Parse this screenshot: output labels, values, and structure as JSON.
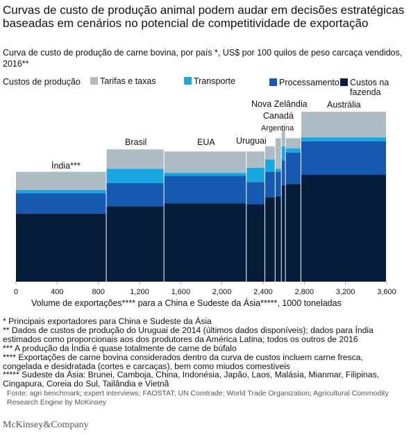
{
  "header": {
    "title": "Curvas de custo de produção animal podem audar em decisões estratégicas baseadas em cenários no potencial de competitividade de exportação",
    "subtitle": "Curva de custo de produção de carne bovina, por país *, US$ por 100 quilos de peso carcaça vendidos, 2016**"
  },
  "chart_data": {
    "type": "bar",
    "legend_title": "Custos de produção",
    "legend_position": "top",
    "series": [
      {
        "name": "Custos na fazenda",
        "color": "#051c3b"
      },
      {
        "name": "Processamento",
        "color": "#1659b0"
      },
      {
        "name": "Transporte",
        "color": "#19a7df"
      },
      {
        "name": "Tarifas e taxas",
        "color": "#aebcc6"
      }
    ],
    "countries": [
      {
        "name": "Índia***",
        "x0": 0,
        "x1": 880,
        "values": [
          67,
          20,
          3,
          18
        ]
      },
      {
        "name": "Brasil",
        "x0": 880,
        "x1": 1440,
        "values": [
          74,
          23,
          14,
          19
        ]
      },
      {
        "name": "EUA",
        "x0": 1440,
        "x1": 2240,
        "values": [
          77,
          27,
          3,
          21
        ]
      },
      {
        "name": "Uruguai",
        "x0": 2240,
        "x1": 2420,
        "values": [
          76,
          22,
          14,
          16
        ]
      },
      {
        "name": "",
        "x0": 2420,
        "x1": 2520,
        "values": [
          83,
          25,
          12,
          13
        ]
      },
      {
        "name": "",
        "x0": 2520,
        "x1": 2580,
        "values": [
          84,
          24,
          3,
          30
        ]
      },
      {
        "name": "Argentina",
        "x0": 2580,
        "x1": 2620,
        "values": [
          95,
          24,
          14,
          16
        ]
      },
      {
        "name": "Canadá",
        "x0": 2620,
        "x1": 2770,
        "values": [
          96,
          31,
          4,
          10
        ]
      },
      {
        "name": "Nova Zelândia",
        "x0": 2620,
        "x1": 2620,
        "values": []
      },
      {
        "name": "Austrália",
        "x0": 2770,
        "x1": 3600,
        "values": [
          105,
          33,
          4,
          25
        ]
      }
    ],
    "xlabel": "Volume de exportações**** para a China e Sudeste da Ásia*****, 1000 toneladas",
    "xticks": [
      0,
      400,
      800,
      1200,
      1600,
      2000,
      2400,
      2800,
      3200,
      3600
    ],
    "xtick_labels": [
      "0",
      "400",
      "800",
      "1,200",
      "1,600",
      "2,000",
      "2,400",
      "2,800",
      "3,200",
      "3,600"
    ],
    "xlim": [
      0,
      3600
    ],
    "ylim": [
      0,
      180
    ],
    "grid": false
  },
  "notes": [
    "* Principais exportadores para China e Sudeste da Ásia",
    "** Dados de custos de produção do Uruguai de 2014 (últimos dados disponíveis); dados para Índia",
    "estimados como proporcionais aos dos produtores da América Latina; todos os outros de 2016",
    "*** A produção da Índia é quase totalmente de carne de búfalo",
    "**** Exportações de carne bovina considerados dentro da curva de custos incluem carne fresca,",
    "congelada e desidratada (cortes e carcaças), bem como miudos comestiveis",
    "***** Sudeste da Ásia: Brunei, Camboja, China, Indonésia, Japão, Laos, Malásia, Mianmar, Filipinas,",
    "Cingapura, Coreia do Sul, Tailândia e Vietnã"
  ],
  "source": "Fonte: agri benchmark; expert interviews; FAOSTAT; UN Comtrade; World Trade Organization; Agricultural Commodity Research Engine by McKinsey",
  "footer": {
    "logo": "McKinsey&Company"
  }
}
